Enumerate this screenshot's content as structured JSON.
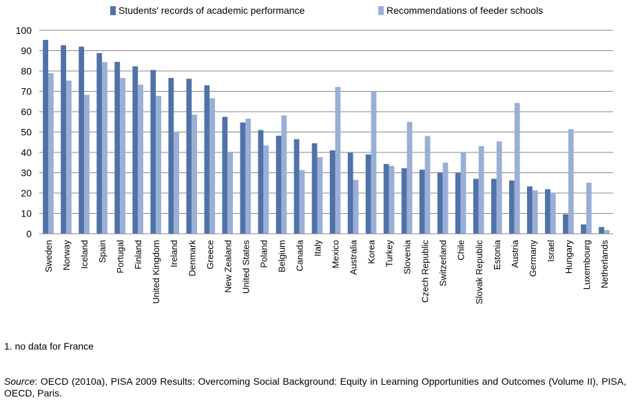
{
  "chart_data": {
    "type": "bar",
    "categories": [
      "Sweden",
      "Norway",
      "Iceland",
      "Spain",
      "Portugal",
      "Finland",
      "United Kingdom",
      "Ireland",
      "Denmark",
      "Greece",
      "New Zealand",
      "United States",
      "Poland",
      "Belgium",
      "Canada",
      "Italy",
      "Mexico",
      "Australia",
      "Korea",
      "Turkey",
      "Slovenia",
      "Czech Republic",
      "Switzerland",
      "Chile",
      "Slovak Republic",
      "Estonia",
      "Austria",
      "Germany",
      "Israel",
      "Hungary",
      "Luxembourg",
      "Netherlands"
    ],
    "series": [
      {
        "name": "Students' records of academic performance",
        "color": "#4F72A8",
        "values": [
          95.3,
          92.7,
          92.0,
          88.8,
          84.5,
          82.3,
          80.5,
          76.6,
          76.2,
          73.0,
          57.5,
          54.7,
          51.0,
          48.2,
          46.5,
          44.5,
          41.0,
          39.8,
          39.0,
          34.3,
          32.2,
          31.5,
          30.1,
          30.0,
          27.0,
          27.0,
          26.2,
          23.3,
          21.9,
          9.6,
          4.6,
          3.3
        ]
      },
      {
        "name": "Recommendations of feeder schools",
        "color": "#9AAFD6",
        "values": [
          79.0,
          75.3,
          68.3,
          84.4,
          76.6,
          73.3,
          67.8,
          50.1,
          58.6,
          66.6,
          39.9,
          56.6,
          43.4,
          58.2,
          31.3,
          37.7,
          72.2,
          26.5,
          70.0,
          33.4,
          55.0,
          48.0,
          35.0,
          40.1,
          43.1,
          45.4,
          64.3,
          21.3,
          20.0,
          51.4,
          25.1,
          1.8
        ]
      }
    ],
    "ylim": [
      0,
      100
    ],
    "yticks": [
      0,
      10,
      20,
      30,
      40,
      50,
      60,
      70,
      80,
      90,
      100
    ],
    "grid": true,
    "legend_position": "top"
  },
  "footnote": "1. no data for France",
  "source": {
    "label": "Source",
    "text": ": OECD (2010a), PISA 2009 Results: Overcoming Social Background: Equity in Learning Opportunities and Outcomes (Volume II), PISA, OECD, Paris."
  }
}
